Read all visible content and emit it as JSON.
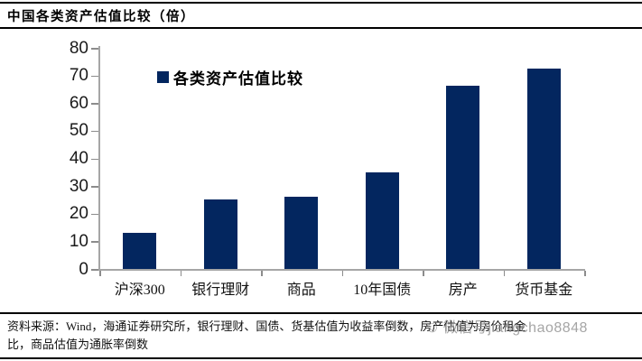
{
  "title": "中国各类资产估值比较（倍）",
  "legend": {
    "label": "各类资产估值比较",
    "marker_color": "#03265f"
  },
  "chart_data": {
    "type": "bar",
    "title": "中国各类资产估值比较（倍）",
    "series_name": "各类资产估值比较",
    "categories": [
      "沪深300",
      "银行理财",
      "商品",
      "10年国债",
      "房产",
      "货币基金"
    ],
    "values": [
      13.2,
      25.3,
      26.2,
      35.1,
      66.3,
      72.5
    ],
    "ylim": [
      0,
      80
    ],
    "yticks": [
      0,
      10,
      20,
      30,
      40,
      50,
      60,
      70,
      80
    ],
    "xlabel": "",
    "ylabel": "",
    "grid": false,
    "legend_position": "inside-top-left",
    "bar_color": "#03265f",
    "axis_color": "#a6a6a6"
  },
  "footer": {
    "line1": "资料来源：Wind，海通证券研究所，银行理财、国债、货基估值为收益率倒数，房产估值为房价租金",
    "line2": "比，商品估值为通胀率倒数",
    "watermark_icon": "☺",
    "watermark_text": "微信号jiangchao8848"
  }
}
